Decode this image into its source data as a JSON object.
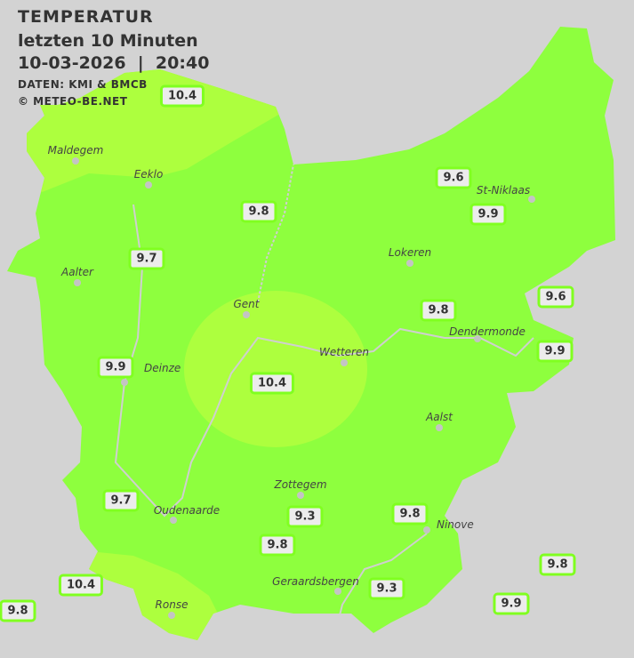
{
  "header": {
    "title": "TEMPERATUR",
    "subtitle": "letzten 10 Minuten",
    "datetime": "10-03-2026  |  20:40",
    "source": "DATEN: KMI & BMCB",
    "copyright": "© METEO-BE.NET"
  },
  "colors": {
    "background": "#d3d3d3",
    "zone_9_to_10": "#8eff3e",
    "zone_10_to_11": "#adff3e",
    "label_border": "#80ff20"
  },
  "cities": [
    "Maldegem",
    "Eeklo",
    "St-Niklaas",
    "Lokeren",
    "Aalter",
    "Gent",
    "Dendermonde",
    "Wetteren",
    "Deinze",
    "Aalst",
    "Zottegem",
    "Oudenaarde",
    "Ninove",
    "Geraardsbergen",
    "Ronse"
  ],
  "stations": [
    "10.4",
    "9.6",
    "9.9",
    "9.8",
    "9.7",
    "9.6",
    "9.8",
    "9.9",
    "9.9",
    "10.4",
    "9.7",
    "9.3",
    "9.8",
    "9.8",
    "9.8",
    "10.4",
    "9.3",
    "9.9",
    "9.8"
  ]
}
